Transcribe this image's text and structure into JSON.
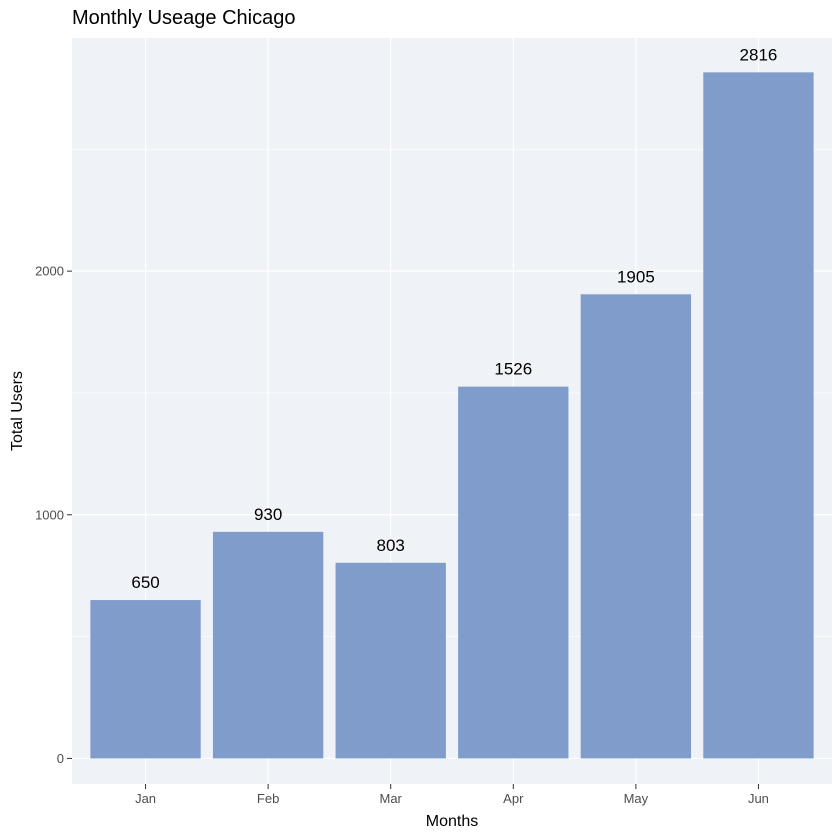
{
  "chart_data": {
    "type": "bar",
    "title": "Monthly Useage Chicago",
    "xlabel": "Months",
    "ylabel": "Total Users",
    "categories": [
      "Jan",
      "Feb",
      "Mar",
      "Apr",
      "May",
      "Jun"
    ],
    "values": [
      650,
      930,
      803,
      1526,
      1905,
      2816
    ],
    "data_labels": [
      "650",
      "930",
      "803",
      "1526",
      "1905",
      "2816"
    ],
    "y_ticks": [
      0,
      1000,
      2000
    ],
    "y_tick_labels": [
      "0",
      "1000",
      "2000"
    ],
    "ylim": [
      -105,
      2957
    ],
    "grid": true,
    "bar_color": "#7f9cca",
    "panel_background": "#eff3f8",
    "grid_color": "#ffffff"
  }
}
